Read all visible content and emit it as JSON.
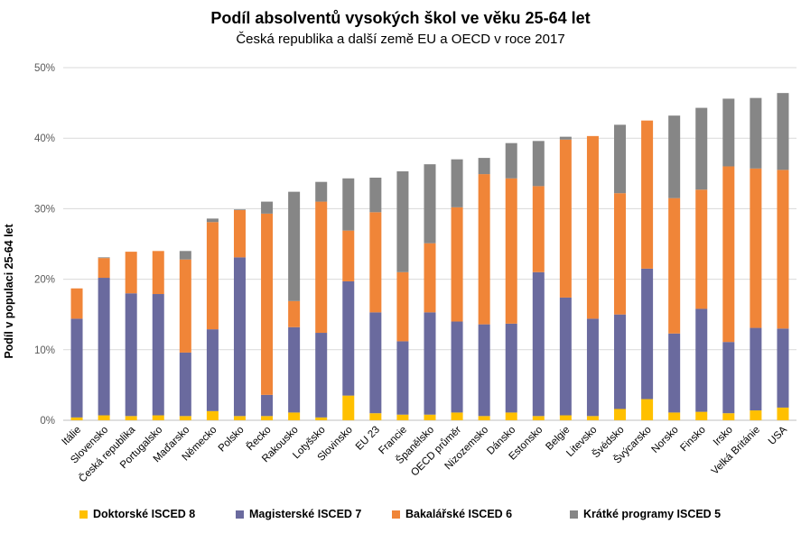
{
  "chart_data": {
    "type": "bar",
    "stacked": true,
    "title": "Podíl absolventů vysokých škol ve věku 25-64 let",
    "subtitle": "Česká republika a další země EU a OECD v roce 2017",
    "ylabel": "Podíl v populaci 25-64 let",
    "xlabel": "",
    "ylim": [
      0,
      50
    ],
    "yticks": [
      "0%",
      "10%",
      "20%",
      "30%",
      "40%",
      "50%"
    ],
    "grid": true,
    "legend_position": "bottom",
    "categories": [
      "Itálie",
      "Slovensko",
      "Česká republika",
      "Portugalsko",
      "Maďarsko",
      "Německo",
      "Polsko",
      "Řecko",
      "Rakousko",
      "Lotyšsko",
      "Slovinsko",
      "EU 23",
      "Francie",
      "Španělsko",
      "OECD průměr",
      "Nizozemsko",
      "Dánsko",
      "Estonsko",
      "Belgie",
      "Litevsko",
      "Švédsko",
      "Švýcarsko",
      "Norsko",
      "Finsko",
      "Irsko",
      "Velká Británie",
      "USA"
    ],
    "series": [
      {
        "name": "Doktorské ISCED 8",
        "color": "#FFC000",
        "values": [
          0.4,
          0.7,
          0.6,
          0.7,
          0.6,
          1.3,
          0.6,
          0.6,
          1.1,
          0.4,
          3.5,
          1.0,
          0.8,
          0.8,
          1.1,
          0.6,
          1.1,
          0.6,
          0.7,
          0.6,
          1.6,
          3.0,
          1.1,
          1.2,
          1.0,
          1.4,
          1.8
        ]
      },
      {
        "name": "Magisterské ISCED 7",
        "color": "#6A6A9E",
        "values": [
          14.0,
          19.5,
          17.4,
          17.2,
          9.0,
          11.6,
          22.5,
          3.0,
          12.1,
          12.0,
          16.2,
          14.3,
          10.4,
          14.5,
          12.9,
          13.0,
          12.6,
          20.4,
          16.7,
          13.8,
          13.4,
          18.5,
          11.2,
          14.6,
          10.1,
          11.7,
          11.2
        ]
      },
      {
        "name": "Bakalářské ISCED 6",
        "color": "#F08538",
        "values": [
          4.3,
          2.8,
          5.9,
          6.1,
          13.2,
          15.2,
          6.7,
          25.7,
          3.7,
          18.6,
          7.2,
          14.2,
          9.8,
          9.8,
          16.2,
          21.3,
          20.6,
          12.2,
          22.4,
          25.9,
          17.2,
          21.0,
          19.2,
          16.9,
          24.9,
          22.6,
          22.5
        ]
      },
      {
        "name": "Krátké programy ISCED 5",
        "color": "#868686",
        "values": [
          0.0,
          0.1,
          0.0,
          0.0,
          1.2,
          0.5,
          0.1,
          1.7,
          15.5,
          2.8,
          7.4,
          4.9,
          14.3,
          11.2,
          6.8,
          2.3,
          5.0,
          6.4,
          0.4,
          0.0,
          9.7,
          0.0,
          11.7,
          11.6,
          9.6,
          10.0,
          10.9
        ]
      }
    ]
  }
}
